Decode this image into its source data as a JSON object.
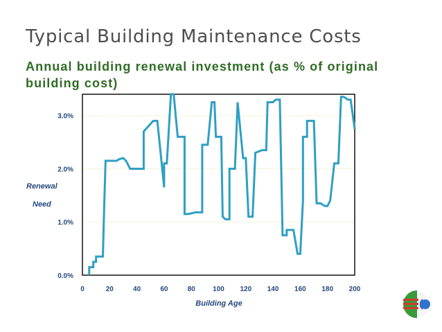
{
  "slide": {
    "title": "Typical Building Maintenance Costs",
    "subtitle": "Annual building renewal investment (as % of original building cost)"
  },
  "chart_data": {
    "type": "line",
    "title": "",
    "xlabel": "Building Age",
    "ylabel": [
      "Renewal",
      "Need"
    ],
    "x_ticks": [
      0,
      20,
      40,
      60,
      80,
      100,
      120,
      140,
      160,
      180,
      200
    ],
    "y_ticks": [
      0.0,
      1.0,
      2.0,
      3.0
    ],
    "y_tick_labels": [
      "0.0%",
      "1.0%",
      "2.0%",
      "3.0%"
    ],
    "xlim": [
      0,
      200
    ],
    "ylim": [
      0,
      3.4
    ],
    "grid": "horizontal dotted",
    "legend": "none",
    "series": [
      {
        "color": "#2f9fc3",
        "x": [
          5,
          5,
          8,
          8,
          10,
          10,
          15,
          16,
          17,
          25,
          27,
          30,
          32,
          35,
          45,
          45,
          52,
          55,
          60,
          60,
          62,
          65,
          67,
          70,
          75,
          75,
          78,
          83,
          88,
          88,
          92,
          95,
          97,
          98,
          102,
          103,
          105,
          108,
          108,
          112,
          114,
          114,
          118,
          119,
          120,
          122,
          125,
          127,
          127,
          132,
          135,
          136,
          140,
          142,
          145,
          147,
          150,
          150,
          155,
          158,
          160,
          162,
          162,
          165,
          165,
          167,
          170,
          172,
          175,
          178,
          180,
          182,
          185,
          188,
          190,
          192,
          195,
          197,
          200
        ],
        "y": [
          0.0,
          0.15,
          0.15,
          0.25,
          0.25,
          0.35,
          0.35,
          1.3,
          2.15,
          2.15,
          2.18,
          2.2,
          2.15,
          2.0,
          2.0,
          2.7,
          2.9,
          2.9,
          1.65,
          2.1,
          2.1,
          3.4,
          3.4,
          2.6,
          2.6,
          1.15,
          1.15,
          1.18,
          1.18,
          2.45,
          2.45,
          3.25,
          3.25,
          2.6,
          2.6,
          1.1,
          1.05,
          1.05,
          2.0,
          2.0,
          3.25,
          3.25,
          2.2,
          2.2,
          2.2,
          1.1,
          1.1,
          2.3,
          2.3,
          2.35,
          2.35,
          3.25,
          3.25,
          3.3,
          3.3,
          0.75,
          0.75,
          0.85,
          0.85,
          0.4,
          0.4,
          1.4,
          2.6,
          2.6,
          2.9,
          2.9,
          2.9,
          1.35,
          1.35,
          1.3,
          1.3,
          1.4,
          2.1,
          2.1,
          3.35,
          3.35,
          3.3,
          3.3,
          2.75
        ]
      }
    ]
  }
}
